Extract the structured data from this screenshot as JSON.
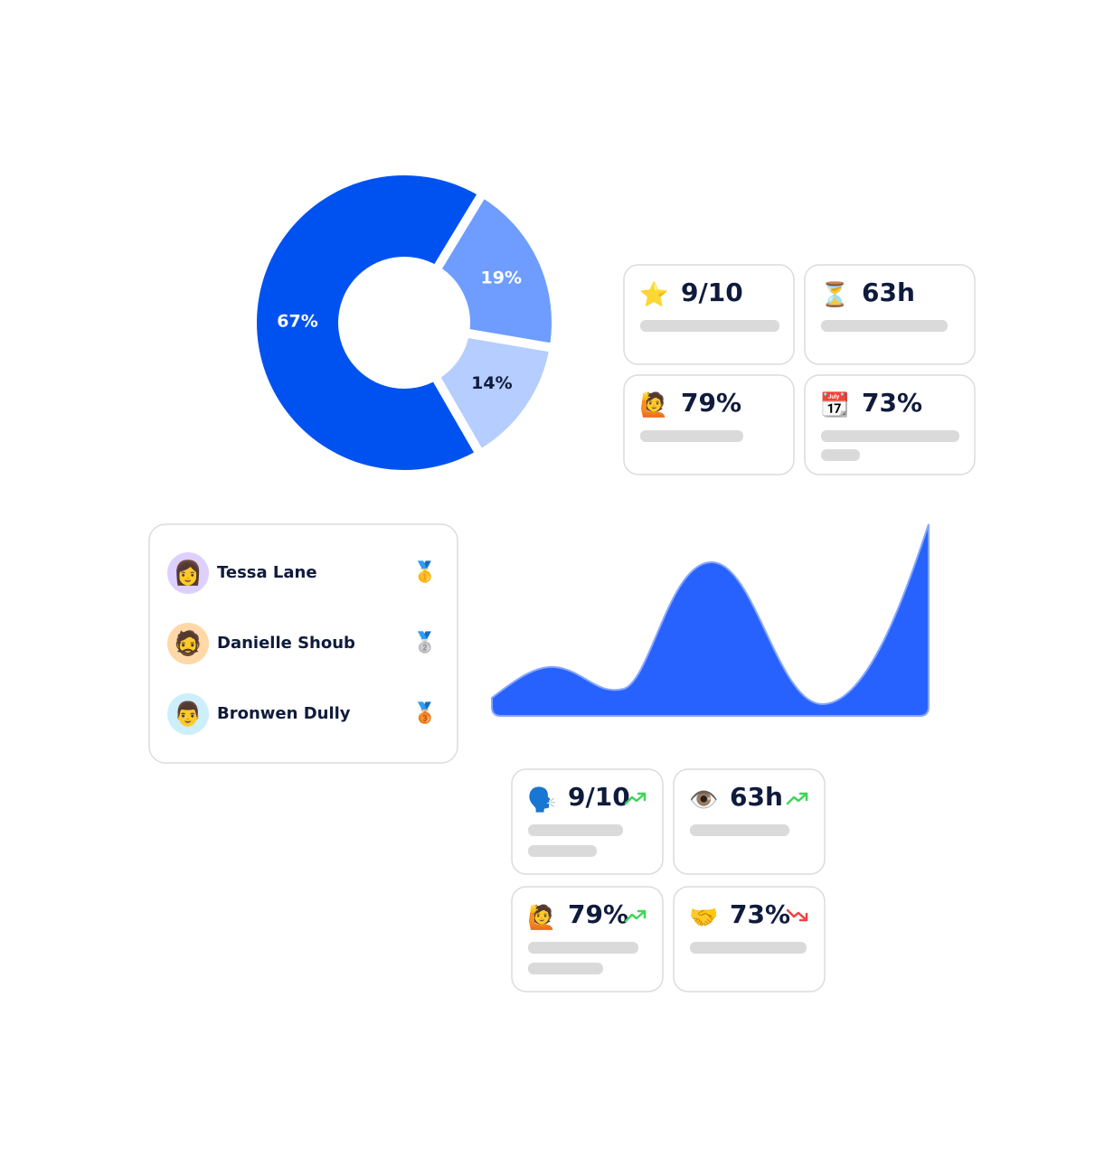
{
  "donut": {
    "type": "pie",
    "values": [
      67,
      19,
      14
    ],
    "value_labels": [
      "67%",
      "19%",
      "14%"
    ],
    "colors": [
      "#0052f0",
      "#6e9dff",
      "#b5cdff"
    ]
  },
  "top_cards": [
    {
      "icon": "⭐",
      "value": "9/10"
    },
    {
      "icon": "⏳",
      "value": "63h"
    },
    {
      "icon": "🙋",
      "value": "79%"
    },
    {
      "icon": "📆",
      "value": "73%"
    }
  ],
  "leaderboard": [
    {
      "avatar": "👩",
      "name": "Tessa Lane",
      "medal": "🥇"
    },
    {
      "avatar": "🧔",
      "name": "Danielle Shoub",
      "medal": "🥈"
    },
    {
      "avatar": "👨",
      "name": "Bronwen Dully",
      "medal": "🥉"
    }
  ],
  "bottom_cards": [
    {
      "icon": "🗣️",
      "value": "9/10",
      "trend": "up"
    },
    {
      "icon": "👁️",
      "value": "63h",
      "trend": "up"
    },
    {
      "icon": "🙋",
      "value": "79%",
      "trend": "up"
    },
    {
      "icon": "🤝",
      "value": "73%",
      "trend": "down"
    }
  ]
}
